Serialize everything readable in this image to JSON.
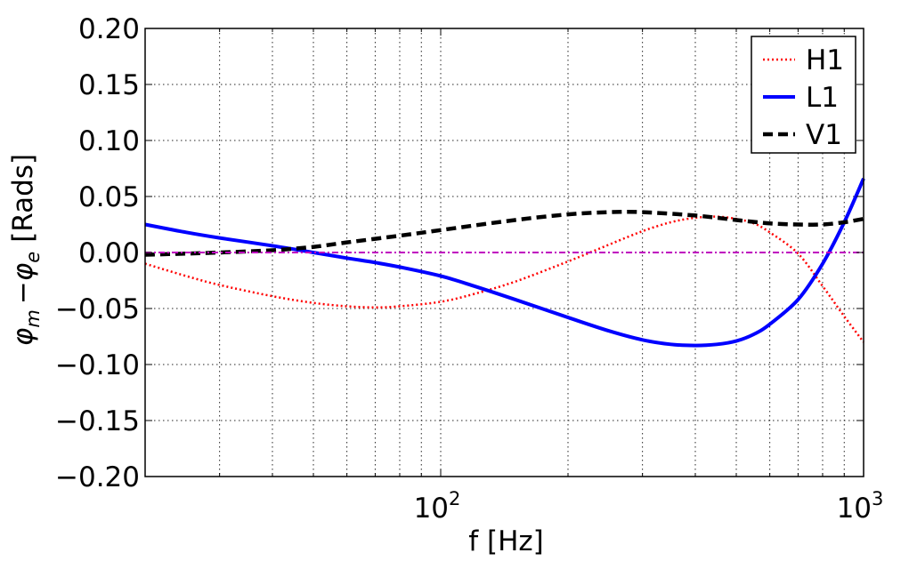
{
  "chart_data": {
    "type": "line",
    "xscale": "log",
    "xlim": [
      20,
      1000
    ],
    "ylim": [
      -0.2,
      0.2
    ],
    "xlabel": "f [Hz]",
    "ylabel": "−",
    "ylabel_parts": {
      "phi": "φ",
      "sub_m": "m",
      "sub_e": "e",
      "unit": "[Rads]"
    },
    "grid": true,
    "legend": "top-right",
    "x_ticks": [
      {
        "value": 100,
        "base": "10",
        "exp": "2"
      },
      {
        "value": 1000,
        "base": "10",
        "exp": "3"
      }
    ],
    "y_ticks": [
      {
        "value": -0.2,
        "label": "−0.20"
      },
      {
        "value": -0.15,
        "label": "−0.15"
      },
      {
        "value": -0.1,
        "label": "−0.10"
      },
      {
        "value": -0.05,
        "label": "−0.05"
      },
      {
        "value": 0.0,
        "label": "0.00"
      },
      {
        "value": 0.05,
        "label": "0.05"
      },
      {
        "value": 0.1,
        "label": "0.10"
      },
      {
        "value": 0.15,
        "label": "0.15"
      },
      {
        "value": 0.2,
        "label": "0.20"
      }
    ],
    "series": [
      {
        "name": "H1",
        "color": "#ff0000",
        "style": "dotted",
        "x": [
          20,
          25,
          30,
          40,
          50,
          60,
          70,
          80,
          100,
          120,
          150,
          200,
          250,
          300,
          350,
          400,
          450,
          500,
          550,
          600,
          700,
          800,
          900,
          1000
        ],
        "y": [
          -0.01,
          -0.021,
          -0.029,
          -0.039,
          -0.045,
          -0.048,
          -0.049,
          -0.048,
          -0.044,
          -0.037,
          -0.026,
          -0.008,
          0.007,
          0.019,
          0.027,
          0.031,
          0.032,
          0.03,
          0.026,
          0.018,
          -0.001,
          -0.03,
          -0.057,
          -0.08
        ]
      },
      {
        "name": "L1",
        "color": "#0000ff",
        "style": "solid",
        "x": [
          20,
          25,
          30,
          40,
          50,
          60,
          70,
          80,
          100,
          120,
          150,
          200,
          250,
          300,
          350,
          400,
          450,
          500,
          550,
          600,
          700,
          800,
          900,
          1000
        ],
        "y": [
          0.025,
          0.018,
          0.013,
          0.006,
          0.0,
          -0.005,
          -0.009,
          -0.013,
          -0.021,
          -0.03,
          -0.042,
          -0.058,
          -0.07,
          -0.078,
          -0.082,
          -0.083,
          -0.082,
          -0.079,
          -0.073,
          -0.064,
          -0.042,
          -0.01,
          0.027,
          0.066
        ]
      },
      {
        "name": "V1",
        "color": "#000000",
        "style": "dashed",
        "x": [
          20,
          25,
          30,
          40,
          50,
          60,
          80,
          100,
          150,
          200,
          250,
          300,
          400,
          500,
          600,
          700,
          800,
          900,
          1000
        ],
        "y": [
          -0.002,
          -0.001,
          0.0,
          0.002,
          0.005,
          0.009,
          0.015,
          0.02,
          0.029,
          0.034,
          0.036,
          0.036,
          0.033,
          0.029,
          0.026,
          0.025,
          0.025,
          0.027,
          0.03
        ]
      },
      {
        "name": "",
        "color": "#bf00bf",
        "style": "dashdot",
        "x": [
          20,
          1000
        ],
        "y": [
          0.0,
          0.0
        ]
      }
    ]
  }
}
